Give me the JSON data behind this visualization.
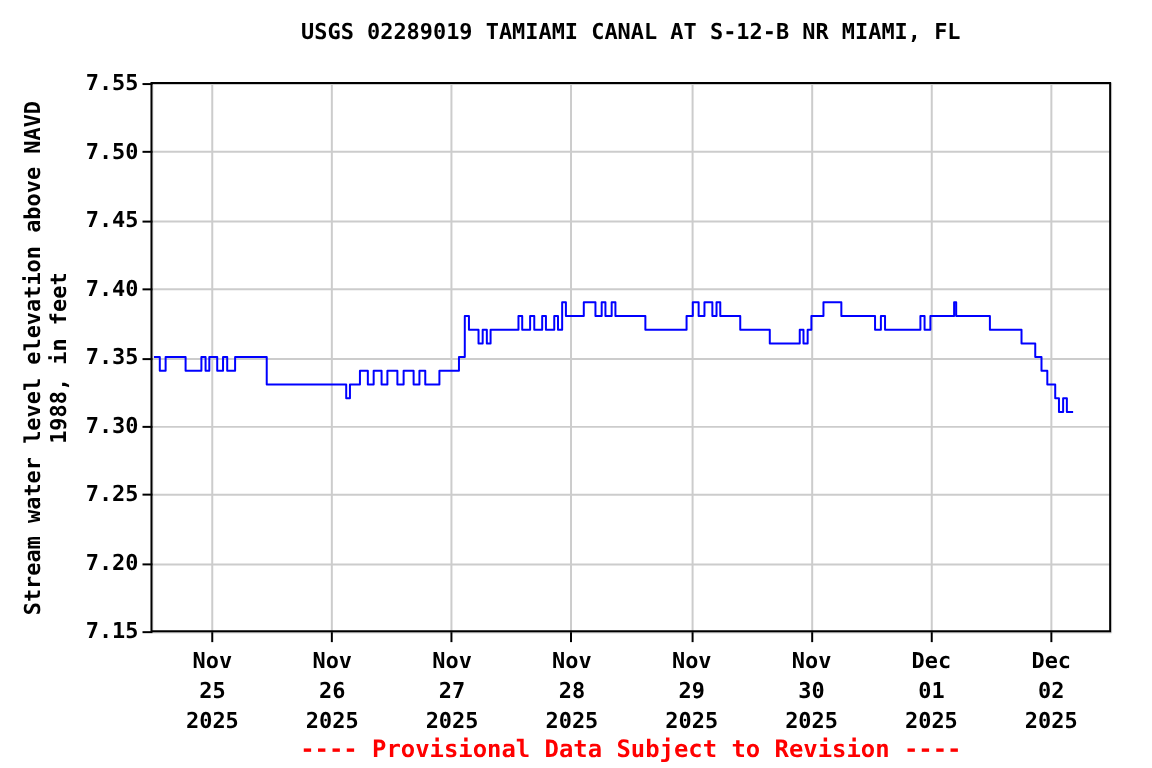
{
  "chart_data": {
    "type": "step",
    "title": "USGS 02289019 TAMIAMI CANAL AT S-12-B  NR MIAMI, FL",
    "ylabel": "Stream water level elevation above NAVD\n1988, in feet",
    "annotations": [
      "---- Provisional Data Subject to Revision ----"
    ],
    "x": [
      "2025-11-24T12:30",
      "2025-11-24T13:40",
      "2025-11-24T14:50",
      "2025-11-24T18:50",
      "2025-11-24T22:00",
      "2025-11-24T22:50",
      "2025-11-24T23:35",
      "2025-11-25T01:10",
      "2025-11-25T02:20",
      "2025-11-25T03:10",
      "2025-11-25T04:45",
      "2025-11-25T11:05",
      "2025-11-26T03:00",
      "2025-11-26T03:45",
      "2025-11-26T05:45",
      "2025-11-26T07:20",
      "2025-11-26T08:30",
      "2025-11-26T10:05",
      "2025-11-26T11:15",
      "2025-11-26T13:15",
      "2025-11-26T14:30",
      "2025-11-26T16:30",
      "2025-11-26T17:40",
      "2025-11-26T18:50",
      "2025-11-26T21:40",
      "2025-11-27T01:35",
      "2025-11-27T02:45",
      "2025-11-27T03:35",
      "2025-11-27T05:30",
      "2025-11-27T06:20",
      "2025-11-27T07:10",
      "2025-11-27T07:55",
      "2025-11-27T13:30",
      "2025-11-27T14:15",
      "2025-11-27T15:50",
      "2025-11-27T16:40",
      "2025-11-27T18:15",
      "2025-11-27T19:00",
      "2025-11-27T20:40",
      "2025-11-27T21:25",
      "2025-11-27T22:15",
      "2025-11-27T23:00",
      "2025-11-28T02:35",
      "2025-11-28T04:55",
      "2025-11-28T06:10",
      "2025-11-28T06:55",
      "2025-11-28T08:10",
      "2025-11-28T08:55",
      "2025-11-28T14:55",
      "2025-11-28T23:10",
      "2025-11-29T00:25",
      "2025-11-29T01:35",
      "2025-11-29T02:45",
      "2025-11-29T04:20",
      "2025-11-29T05:10",
      "2025-11-29T05:55",
      "2025-11-29T09:55",
      "2025-11-29T15:50",
      "2025-11-29T21:50",
      "2025-11-29T22:35",
      "2025-11-29T23:25",
      "2025-11-30T00:10",
      "2025-11-30T02:35",
      "2025-11-30T06:10",
      "2025-11-30T12:55",
      "2025-11-30T14:05",
      "2025-11-30T14:55",
      "2025-11-30T22:00",
      "2025-11-30T22:50",
      "2025-12-01T00:00",
      "2025-12-01T04:45",
      "2025-12-01T05:10",
      "2025-12-01T11:55",
      "2025-12-01T18:15",
      "2025-12-01T21:00",
      "2025-12-01T22:15",
      "2025-12-01T23:25",
      "2025-12-02T01:00",
      "2025-12-02T01:45",
      "2025-12-02T02:35",
      "2025-12-02T03:20",
      "2025-12-02T04:35"
    ],
    "series": [
      {
        "color": "#0000ff",
        "values": [
          7.35,
          7.34,
          7.35,
          7.34,
          7.35,
          7.34,
          7.35,
          7.34,
          7.35,
          7.34,
          7.35,
          7.33,
          7.32,
          7.33,
          7.34,
          7.33,
          7.34,
          7.33,
          7.34,
          7.33,
          7.34,
          7.33,
          7.34,
          7.33,
          7.34,
          7.35,
          7.38,
          7.37,
          7.36,
          7.37,
          7.36,
          7.37,
          7.38,
          7.37,
          7.38,
          7.37,
          7.38,
          7.37,
          7.38,
          7.37,
          7.39,
          7.38,
          7.39,
          7.38,
          7.39,
          7.38,
          7.39,
          7.38,
          7.37,
          7.38,
          7.39,
          7.38,
          7.39,
          7.38,
          7.39,
          7.38,
          7.37,
          7.36,
          7.37,
          7.36,
          7.37,
          7.38,
          7.39,
          7.38,
          7.37,
          7.38,
          7.37,
          7.38,
          7.37,
          7.38,
          7.39,
          7.38,
          7.37,
          7.36,
          7.35,
          7.34,
          7.33,
          7.32,
          7.31,
          7.32,
          7.31,
          7.31
        ]
      }
    ],
    "xlim": [
      "2025-11-24T12:00",
      "2025-12-02T12:00"
    ],
    "xticks": [
      {
        "value": "2025-11-25",
        "label": "Nov\n25\n2025"
      },
      {
        "value": "2025-11-26",
        "label": "Nov\n26\n2025"
      },
      {
        "value": "2025-11-27",
        "label": "Nov\n27\n2025"
      },
      {
        "value": "2025-11-28",
        "label": "Nov\n28\n2025"
      },
      {
        "value": "2025-11-29",
        "label": "Nov\n29\n2025"
      },
      {
        "value": "2025-11-30",
        "label": "Nov\n30\n2025"
      },
      {
        "value": "2025-12-01",
        "label": "Dec\n01\n2025"
      },
      {
        "value": "2025-12-02",
        "label": "Dec\n02\n2025"
      }
    ],
    "ylim": [
      7.15,
      7.55
    ],
    "yticks": [
      {
        "value": 7.15,
        "label": "7.15"
      },
      {
        "value": 7.2,
        "label": "7.20"
      },
      {
        "value": 7.25,
        "label": "7.25"
      },
      {
        "value": 7.3,
        "label": "7.30"
      },
      {
        "value": 7.35,
        "label": "7.35"
      },
      {
        "value": 7.4,
        "label": "7.40"
      },
      {
        "value": 7.45,
        "label": "7.45"
      },
      {
        "value": 7.5,
        "label": "7.50"
      },
      {
        "value": 7.55,
        "label": "7.55"
      }
    ],
    "grid": true
  }
}
